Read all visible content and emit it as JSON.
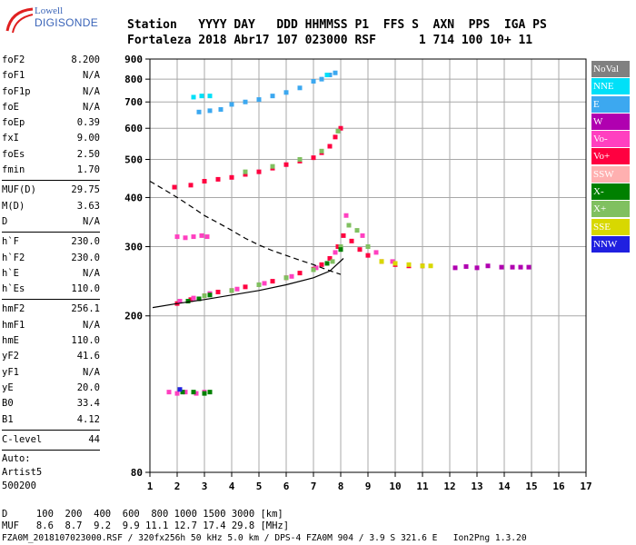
{
  "logo": {
    "top": "Lowell",
    "main": "DIGISONDE",
    "colors": {
      "arc": "#e02020",
      "text": "#3a64b8"
    }
  },
  "header": {
    "row1": "Station   YYYY DAY   DDD HHMMSS P1  FFS S  AXN  PPS  IGA PS",
    "row2": "Fortaleza 2018 Abr17 107 023000 RSF      1 714 100 10+ 11"
  },
  "side": {
    "g1": [
      {
        "k": "foF2",
        "v": "8.200"
      },
      {
        "k": "foF1",
        "v": "N/A"
      },
      {
        "k": "foF1p",
        "v": "N/A"
      },
      {
        "k": "foE",
        "v": "N/A"
      },
      {
        "k": "foEp",
        "v": "0.39"
      },
      {
        "k": "fxI",
        "v": "9.00"
      },
      {
        "k": "foEs",
        "v": "2.50"
      },
      {
        "k": "fmin",
        "v": "1.70"
      }
    ],
    "g2": [
      {
        "k": "MUF(D)",
        "v": "29.75"
      },
      {
        "k": "M(D)",
        "v": "3.63"
      },
      {
        "k": "D",
        "v": "N/A"
      }
    ],
    "g3": [
      {
        "k": "h`F",
        "v": "230.0"
      },
      {
        "k": "h`F2",
        "v": "230.0"
      },
      {
        "k": "h`E",
        "v": "N/A"
      },
      {
        "k": "h`Es",
        "v": "110.0"
      }
    ],
    "g4": [
      {
        "k": "hmF2",
        "v": "256.1"
      },
      {
        "k": "hmF1",
        "v": "N/A"
      },
      {
        "k": "hmE",
        "v": "110.0"
      },
      {
        "k": "yF2",
        "v": "41.6"
      },
      {
        "k": "yF1",
        "v": "N/A"
      },
      {
        "k": "yE",
        "v": "20.0"
      },
      {
        "k": "B0",
        "v": "33.4"
      },
      {
        "k": "B1",
        "v": "4.12"
      }
    ],
    "g5": [
      {
        "k": "C-level",
        "v": "44"
      }
    ],
    "auto": [
      "Auto:",
      "Artist5",
      "500200"
    ]
  },
  "legend": [
    {
      "label": "NoVal",
      "color": "#808080"
    },
    {
      "label": "NNE",
      "color": "#00e0f8"
    },
    {
      "label": "E",
      "color": "#3ca8f0"
    },
    {
      "label": "W",
      "color": "#b000b0"
    },
    {
      "label": "Vo-",
      "color": "#ff40c0"
    },
    {
      "label": "Vo+",
      "color": "#ff0040"
    },
    {
      "label": "SSW",
      "color": "#ffb0b0"
    },
    {
      "label": "X-",
      "color": "#008000"
    },
    {
      "label": "X+",
      "color": "#80c060"
    },
    {
      "label": "SSE",
      "color": "#d8d800"
    },
    {
      "label": "NNW",
      "color": "#2020e0"
    }
  ],
  "footer": {
    "line1": "D     100  200  400  600  800 1000 1500 3000 [km]",
    "line2": "MUF   8.6  8.7  9.2  9.9 11.1 12.7 17.4 29.8 [MHz]",
    "line3": "FZA0M_2018107023000.RSF / 320fx256h 50 kHz 5.0 km / DPS-4 FZA0M 904 / 3.9 S 321.6 E   Ion2Png 1.3.20"
  },
  "chart_data": {
    "type": "scatter",
    "xlim": [
      1,
      17
    ],
    "ylim": [
      80,
      900
    ],
    "xticks": [
      "1",
      "2",
      "3",
      "4",
      "5",
      "6",
      "7",
      "8",
      "9",
      "10",
      "11",
      "12",
      "13",
      "14",
      "15",
      "16",
      "17"
    ],
    "yticks": [
      "80",
      "200",
      "300",
      "400",
      "500",
      "600",
      "700",
      "800",
      "900"
    ],
    "ytick_values": [
      80,
      200,
      300,
      400,
      500,
      600,
      700,
      800,
      900
    ],
    "y_scale": "log",
    "grid": true,
    "legend_position": "right",
    "series": [
      {
        "color": "#ff0040",
        "x": [
          2,
          2.5,
          3,
          3.5,
          4,
          4.5,
          5,
          5.5,
          6,
          6.5,
          7,
          7.3,
          7.6,
          7.9,
          8.1,
          8.4,
          8.7,
          9,
          9.5,
          10,
          10.5,
          11
        ],
        "y": [
          215,
          220,
          225,
          230,
          232,
          237,
          240,
          245,
          250,
          257,
          263,
          270,
          280,
          300,
          320,
          310,
          295,
          285,
          275,
          270,
          268,
          268
        ]
      },
      {
        "color": "#ff40c0",
        "x": [
          2.1,
          2.6,
          3.2,
          4.2,
          5.2,
          6.2,
          7.1,
          7.8,
          8.2,
          8.8,
          9.3,
          9.9
        ],
        "y": [
          218,
          222,
          228,
          234,
          242,
          252,
          265,
          290,
          360,
          320,
          290,
          275
        ]
      },
      {
        "color": "#80c060",
        "x": [
          3,
          4,
          5,
          6,
          7,
          7.7,
          8,
          8.3,
          8.6,
          9
        ],
        "y": [
          225,
          232,
          240,
          250,
          262,
          275,
          300,
          340,
          330,
          300
        ]
      },
      {
        "color": "#008000",
        "x": [
          2.4,
          2.8,
          3.2,
          7.5,
          8
        ],
        "y": [
          218,
          221,
          226,
          272,
          295
        ]
      },
      {
        "color": "#d8d800",
        "x": [
          9.5,
          10,
          10.5,
          11,
          11.3
        ],
        "y": [
          275,
          272,
          270,
          268,
          268
        ]
      },
      {
        "color": "#b000b0",
        "x": [
          12.2,
          12.6,
          13,
          13.4,
          13.9,
          14.3,
          14.6,
          14.9
        ],
        "y": [
          265,
          267,
          265,
          268,
          266,
          266,
          266,
          266
        ]
      },
      {
        "color": "#ff0040",
        "x": [
          1.9,
          2.5,
          3,
          3.5,
          4,
          4.5,
          5,
          5.5,
          6,
          6.5,
          7,
          7.3,
          7.6,
          7.8,
          8
        ],
        "y": [
          425,
          430,
          440,
          445,
          450,
          458,
          465,
          475,
          485,
          495,
          505,
          520,
          540,
          570,
          600
        ]
      },
      {
        "color": "#80c060",
        "x": [
          4.5,
          5.5,
          6.5,
          7.3,
          7.9
        ],
        "y": [
          465,
          480,
          500,
          525,
          590
        ]
      },
      {
        "color": "#3ca8f0",
        "x": [
          2.8,
          3.2,
          3.6,
          4,
          4.5,
          5,
          5.5,
          6,
          6.5,
          7,
          7.3,
          7.6,
          7.8
        ],
        "y": [
          660,
          665,
          670,
          690,
          700,
          710,
          725,
          740,
          760,
          790,
          800,
          820,
          830
        ]
      },
      {
        "color": "#00e0f8",
        "x": [
          2.6,
          2.9,
          3.2,
          7.5
        ],
        "y": [
          720,
          725,
          725,
          820
        ]
      },
      {
        "color": "#ff40c0",
        "x": [
          1.7,
          2,
          2.3,
          2.7,
          3
        ],
        "y": [
          128,
          127,
          128,
          127,
          128
        ]
      },
      {
        "color": "#008000",
        "x": [
          2.2,
          2.6,
          3,
          3.2
        ],
        "y": [
          128,
          128,
          127,
          128
        ]
      },
      {
        "color": "#2020e0",
        "x": [
          2.1
        ],
        "y": [
          130
        ]
      },
      {
        "color": "#ff40c0",
        "x": [
          2,
          2.3,
          2.6,
          2.9,
          3.1
        ],
        "y": [
          318,
          316,
          318,
          320,
          318
        ]
      }
    ],
    "profile_solid": {
      "x": [
        1.1,
        2,
        3,
        4,
        5,
        6,
        7,
        7.6,
        8.1
      ],
      "y": [
        210,
        215,
        220,
        226,
        232,
        240,
        250,
        260,
        280
      ]
    },
    "profile_dashed": {
      "x": [
        1,
        1.5,
        2,
        2.5,
        3,
        3.5,
        4,
        4.5,
        5,
        5.5,
        6,
        6.5,
        7,
        7.5,
        8
      ],
      "y": [
        440,
        420,
        400,
        380,
        360,
        345,
        330,
        315,
        303,
        293,
        285,
        277,
        270,
        262,
        255
      ]
    }
  }
}
